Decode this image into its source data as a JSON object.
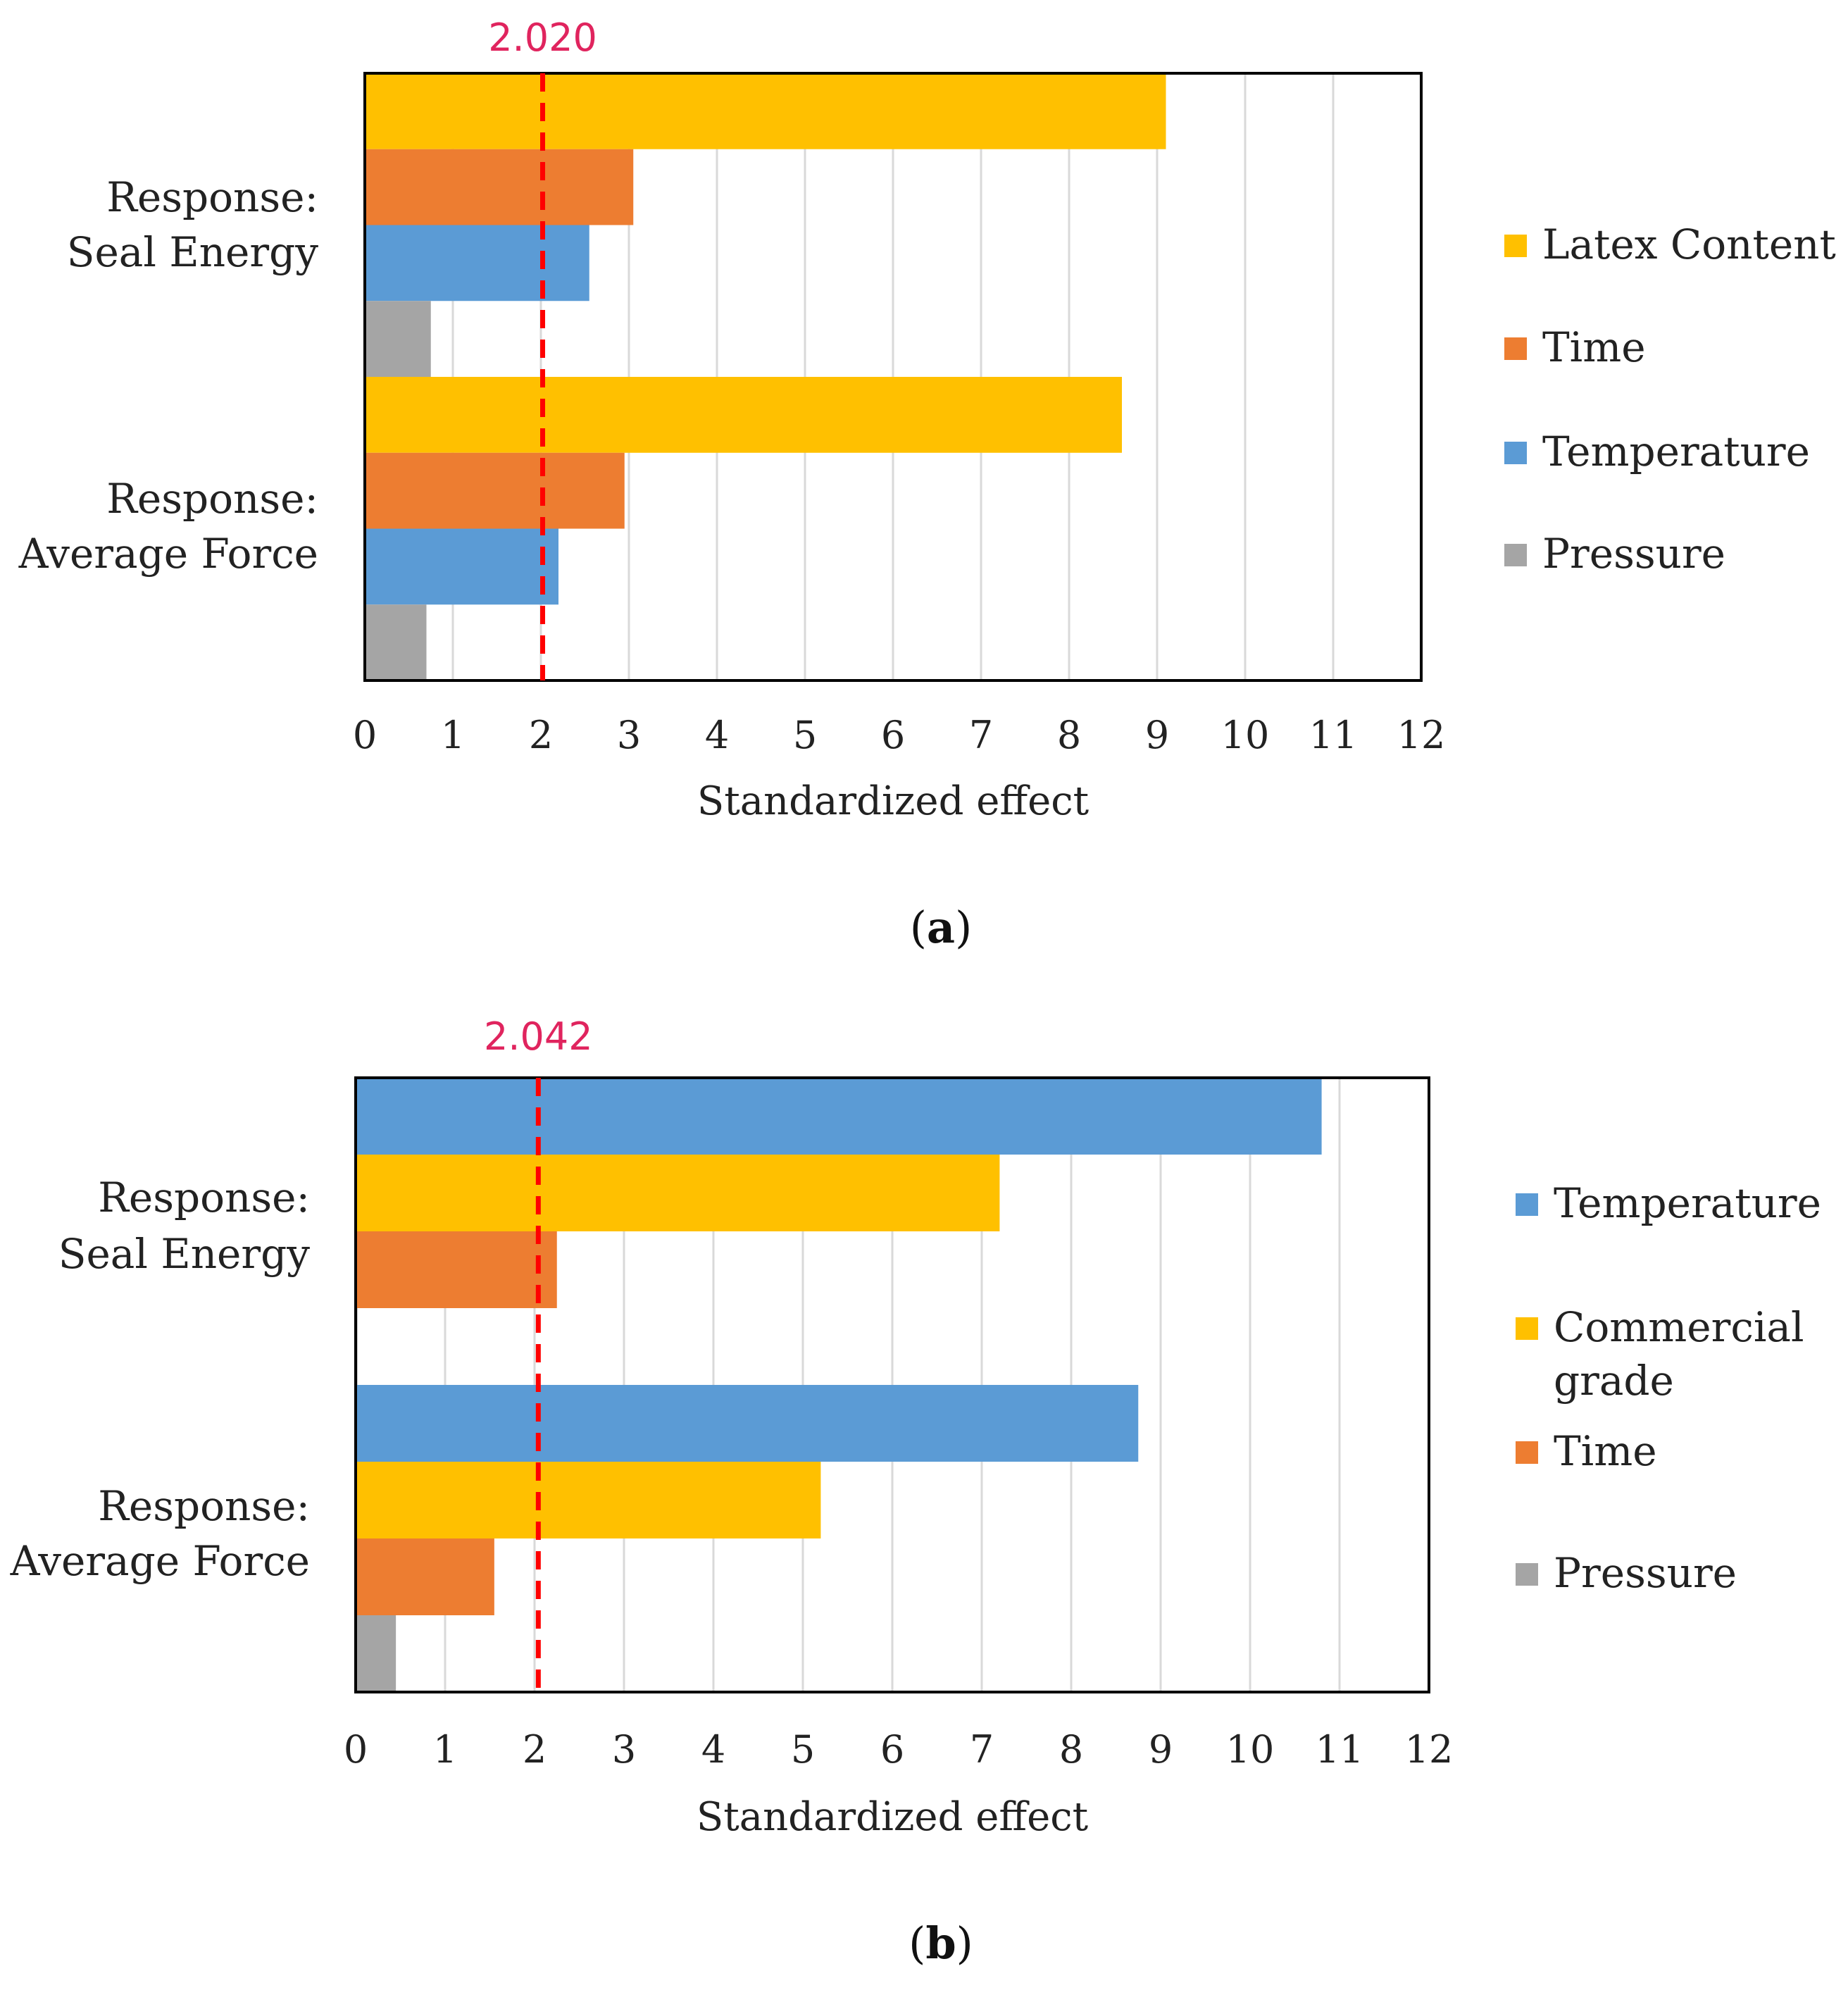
{
  "colors": {
    "latex": "#FFC000",
    "time": "#ED7D31",
    "temperature": "#5B9BD5",
    "pressure": "#A5A5A5",
    "commercial": "#FFC000",
    "threshold": "#FF0000",
    "threshold_label": "#E0245E",
    "grid": "#D9D9D9",
    "frame": "#000000"
  },
  "chart_data": [
    {
      "type": "bar",
      "orientation": "horizontal",
      "panel_label": "a",
      "xlabel": "Standardized effect",
      "xlim": [
        0,
        12
      ],
      "xticks": [
        "0",
        "1",
        "2",
        "3",
        "4",
        "5",
        "6",
        "7",
        "8",
        "9",
        "10",
        "11",
        "12"
      ],
      "threshold": {
        "value": 2.02,
        "label": "2.020"
      },
      "categories": [
        {
          "label_lines": [
            "Response:",
            "Seal Energy"
          ]
        },
        {
          "label_lines": [
            "Response:",
            "Average Force"
          ]
        }
      ],
      "series": [
        {
          "name": "Latex Content",
          "color_key": "latex",
          "values": [
            9.1,
            8.6
          ]
        },
        {
          "name": "Time",
          "color_key": "time",
          "values": [
            3.05,
            2.95
          ]
        },
        {
          "name": "Temperature",
          "color_key": "temperature",
          "values": [
            2.55,
            2.2
          ]
        },
        {
          "name": "Pressure",
          "color_key": "pressure",
          "values": [
            0.75,
            0.7
          ]
        }
      ],
      "legend": [
        {
          "lines": [
            "Latex Content"
          ],
          "color_key": "latex"
        },
        {
          "lines": [
            "Time"
          ],
          "color_key": "time"
        },
        {
          "lines": [
            "Temperature"
          ],
          "color_key": "temperature"
        },
        {
          "lines": [
            "Pressure"
          ],
          "color_key": "pressure"
        }
      ]
    },
    {
      "type": "bar",
      "orientation": "horizontal",
      "panel_label": "b",
      "xlabel": "Standardized effect",
      "xlim": [
        0,
        12
      ],
      "xticks": [
        "0",
        "1",
        "2",
        "3",
        "4",
        "5",
        "6",
        "7",
        "8",
        "9",
        "10",
        "11",
        "12"
      ],
      "threshold": {
        "value": 2.042,
        "label": "2.042"
      },
      "categories": [
        {
          "label_lines": [
            "Response:",
            "Seal Energy"
          ]
        },
        {
          "label_lines": [
            "Response:",
            "Average Force"
          ]
        }
      ],
      "series": [
        {
          "name": "Temperature",
          "color_key": "temperature",
          "values": [
            10.8,
            8.75
          ]
        },
        {
          "name": "Commercial grade",
          "color_key": "commercial",
          "values": [
            7.2,
            5.2
          ]
        },
        {
          "name": "Time",
          "color_key": "time",
          "values": [
            2.25,
            1.55
          ]
        },
        {
          "name": "Pressure",
          "color_key": "pressure",
          "values": [
            0.02,
            0.45
          ]
        }
      ],
      "legend": [
        {
          "lines": [
            "Temperature"
          ],
          "color_key": "temperature"
        },
        {
          "lines": [
            "Commercial",
            "grade"
          ],
          "color_key": "commercial"
        },
        {
          "lines": [
            "Time"
          ],
          "color_key": "time"
        },
        {
          "lines": [
            "Pressure"
          ],
          "color_key": "pressure"
        }
      ]
    }
  ]
}
